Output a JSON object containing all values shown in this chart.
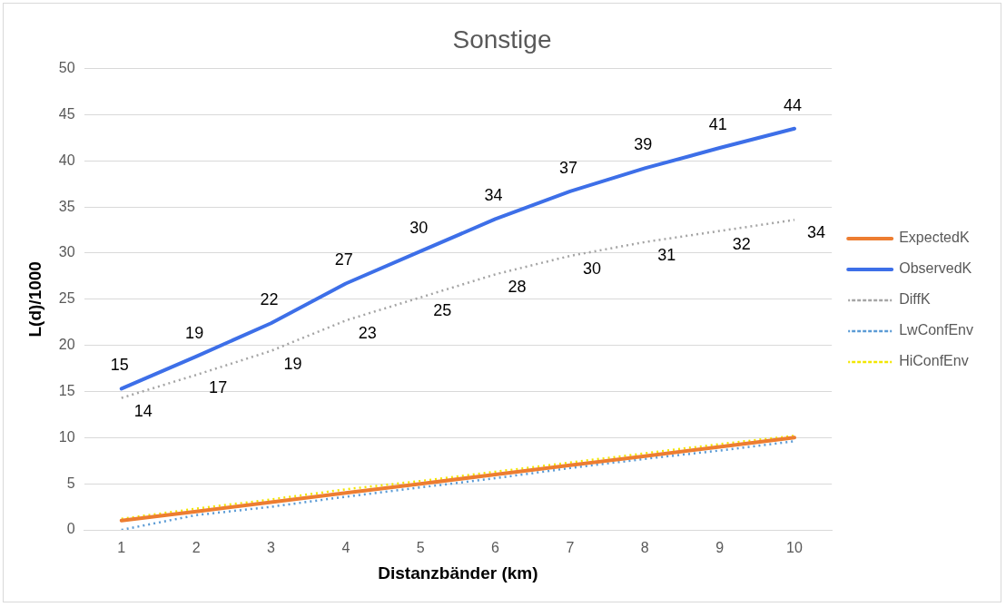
{
  "chart_data": {
    "type": "line",
    "title": "Sonstige",
    "xlabel": "Distanzbänder (km)",
    "ylabel": "L(d)/1000",
    "categories": [
      "1",
      "2",
      "3",
      "4",
      "5",
      "6",
      "7",
      "8",
      "9",
      "10"
    ],
    "series": [
      {
        "name": "ExpectedK",
        "color": "#ed7d31",
        "line_style": "solid",
        "values": [
          1,
          2,
          3,
          4,
          5,
          6,
          7,
          8,
          9,
          10
        ]
      },
      {
        "name": "ObservedK",
        "color": "#3d6fe8",
        "line_style": "solid",
        "values": [
          15.3,
          18.8,
          22.4,
          26.7,
          30.2,
          33.7,
          36.7,
          39.2,
          41.4,
          43.5
        ],
        "value_labels": [
          "15",
          "19",
          "22",
          "27",
          "30",
          "34",
          "37",
          "39",
          "41",
          "44"
        ]
      },
      {
        "name": "DiffK",
        "color": "#a5a5a5",
        "line_style": "dotted",
        "values": [
          14.3,
          16.8,
          19.4,
          22.7,
          25.2,
          27.7,
          29.7,
          31.2,
          32.4,
          33.6
        ],
        "value_labels": [
          "14",
          "17",
          "19",
          "23",
          "25",
          "28",
          "30",
          "31",
          "32",
          "34"
        ]
      },
      {
        "name": "LwConfEnv",
        "color": "#5b9bd5",
        "line_style": "dotted",
        "values": [
          0,
          1.6,
          2.5,
          3.6,
          4.6,
          5.6,
          6.7,
          7.7,
          8.6,
          9.6
        ]
      },
      {
        "name": "HiConfEnv",
        "color": "#f2e600",
        "line_style": "dotted",
        "values": [
          1.2,
          2.3,
          3.3,
          4.4,
          5.3,
          6.3,
          7.3,
          8.3,
          9.3,
          10.2
        ]
      }
    ],
    "ylim": [
      0,
      50
    ],
    "yticks": [
      0,
      5,
      10,
      15,
      20,
      25,
      30,
      35,
      40,
      45,
      50
    ],
    "grid": "y",
    "legend": "right",
    "marker": "none"
  }
}
